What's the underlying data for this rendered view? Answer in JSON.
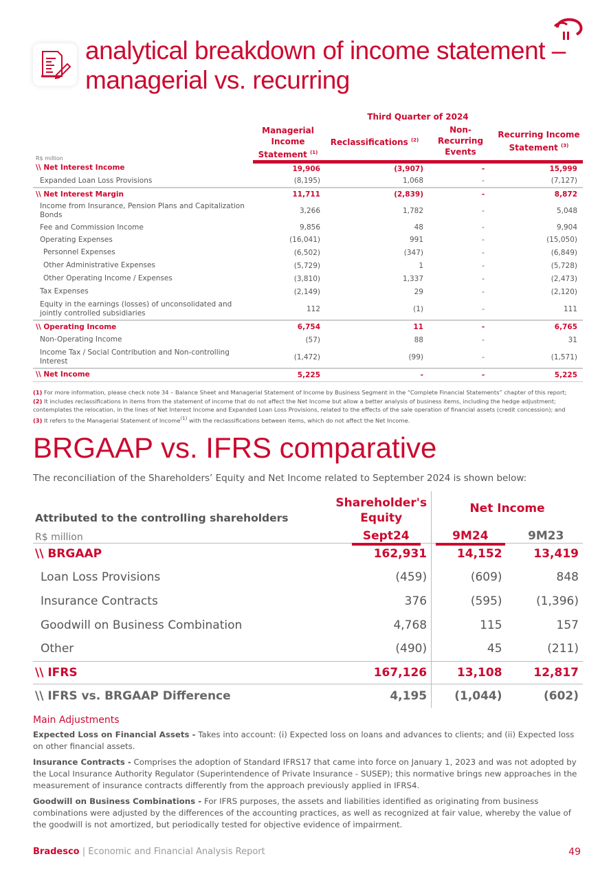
{
  "header": {
    "title_line1": "analytical breakdown of income statement –",
    "title_line2": "managerial vs. recurring",
    "logo": "bradesco-logo",
    "icon": "document-pencil-icon"
  },
  "table1": {
    "group_header": "Third Quarter of 2024",
    "unit": "R$ million",
    "columns": [
      "Managerial Income Statement",
      "Reclassifications",
      "Non-Recurring Events",
      "Recurring Income Statement"
    ],
    "column_notes": [
      "(1)",
      "(2)",
      "",
      "(3)"
    ],
    "rows": [
      {
        "label": "\\\\ Net Interest Income",
        "values": [
          "19,906",
          "(3,907)",
          "-",
          "15,999"
        ]
      },
      {
        "label": "Expanded Loan Loss Provisions",
        "values": [
          "(8,195)",
          "1,068",
          "-",
          "(7,127)"
        ]
      },
      {
        "label": "\\\\ Net Interest Margin",
        "values": [
          "11,711",
          "(2,839)",
          "-",
          "8,872"
        ]
      },
      {
        "label": "Income from Insurance, Pension Plans and Capitalization Bonds",
        "values": [
          "3,266",
          "1,782",
          "-",
          "5,048"
        ]
      },
      {
        "label": "Fee and Commission Income",
        "values": [
          "9,856",
          "48",
          "-",
          "9,904"
        ]
      },
      {
        "label": "Operating Expenses",
        "values": [
          "(16,041)",
          "991",
          "-",
          "(15,050)"
        ]
      },
      {
        "label": "Personnel Expenses",
        "values": [
          "(6,502)",
          "(347)",
          "-",
          "(6,849)"
        ]
      },
      {
        "label": "Other Administrative Expenses",
        "values": [
          "(5,729)",
          "1",
          "-",
          "(5,728)"
        ]
      },
      {
        "label": "Other Operating Income / Expenses",
        "values": [
          "(3,810)",
          "1,337",
          "-",
          "(2,473)"
        ]
      },
      {
        "label": "Tax Expenses",
        "values": [
          "(2,149)",
          "29",
          "-",
          "(2,120)"
        ]
      },
      {
        "label": "Equity in the earnings (losses) of unconsolidated and jointly controlled subsidiaries",
        "values": [
          "112",
          "(1)",
          "-",
          "111"
        ]
      },
      {
        "label": "\\\\ Operating Income",
        "values": [
          "6,754",
          "11",
          "-",
          "6,765"
        ]
      },
      {
        "label": "Non-Operating Income",
        "values": [
          "(57)",
          "88",
          "-",
          "31"
        ]
      },
      {
        "label": "Income Tax / Social Contribution and Non-controlling Interest",
        "values": [
          "(1,472)",
          "(99)",
          "-",
          "(1,571)"
        ]
      },
      {
        "label": "\\\\ Net Income",
        "values": [
          "5,225",
          "-",
          "-",
          "5,225"
        ]
      }
    ],
    "notes": [
      {
        "num": "(1)",
        "text": " For more information, please check note 34 – Balance Sheet and Managerial Statement of Income by Business Segment in the “Complete Financial Statements” chapter of this report;"
      },
      {
        "num": "(2)",
        "text": " It includes reclassifications in items from the statement of income that do not affect the Net Income but allow a better analysis of business items, including the hedge adjustment; contemplates the relocation, in the lines of Net Interest Income and Expanded Loan Loss Provisions, related to the effects of the sale operation of financial assets (credit concession); and"
      },
      {
        "num": "(3)",
        "text": " It refers to the Managerial Statement of Income",
        "sup": "(1)",
        "text2": " with the reclassifications between items, which do not affect the Net Income."
      }
    ]
  },
  "section2": {
    "title": "BRGAAP vs. IFRS comparative",
    "intro": "The reconciliation of the Shareholders’ Equity and Net Income related to September 2024 is shown below:"
  },
  "table2": {
    "caption": "Attributed to the controlling shareholders",
    "unit": "R$ million",
    "equity_header": "Shareholder's Equity",
    "net_income_header": "Net Income",
    "sub_headers": [
      "Sept24",
      "9M24",
      "9M23"
    ],
    "rows": [
      {
        "label": "\\\\ BRGAAP",
        "values": [
          "162,931",
          "14,152",
          "13,419"
        ]
      },
      {
        "label": "Loan Loss Provisions",
        "values": [
          "(459)",
          "(609)",
          "848"
        ]
      },
      {
        "label": "Insurance Contracts",
        "values": [
          "376",
          "(595)",
          "(1,396)"
        ]
      },
      {
        "label": "Goodwill on Business Combination",
        "values": [
          "4,768",
          "115",
          "157"
        ]
      },
      {
        "label": "Other",
        "values": [
          "(490)",
          "45",
          "(211)"
        ]
      },
      {
        "label": "\\\\ IFRS",
        "values": [
          "167,126",
          "13,108",
          "12,817"
        ]
      },
      {
        "label": "\\\\ IFRS vs. BRGAAP Difference",
        "values": [
          "4,195",
          "(1,044)",
          "(602)"
        ]
      }
    ]
  },
  "adjustments": {
    "title": "Main Adjustments",
    "items": [
      {
        "term": "Expected Loss on Financial Assets -",
        "text": " Takes into account: (i) Expected loss on loans and advances to clients; and (ii) Expected loss on other financial assets."
      },
      {
        "term": "Insurance Contracts -",
        "text": " Comprises the adoption of Standard IFRS17 that came into force on January 1, 2023 and was not adopted by the Local Insurance Authority Regulator (Superintendence of Private Insurance - SUSEP); this normative brings new approaches in the measurement of insurance contracts differently from the approach previously applied in IFRS4."
      },
      {
        "term": "Goodwill on Business Combinations -",
        "text": " For IFRS purposes, the assets and liabilities identified as originating from business combinations were adjusted by the differences of the accounting practices, as well as recognized at fair value, whereby the value of the goodwill is not amortized, but periodically tested for objective evidence of impairment."
      }
    ]
  },
  "footer": {
    "brand": "Bradesco",
    "separator": " | ",
    "report": "Economic and Financial Analysis Report",
    "page": "49"
  },
  "colors": {
    "accent": "#cc092f"
  }
}
